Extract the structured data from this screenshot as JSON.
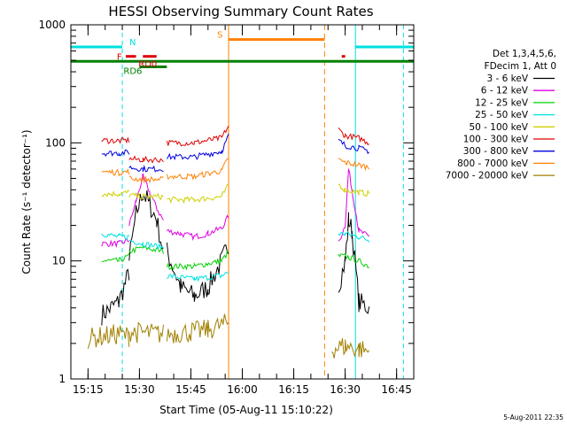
{
  "chart_data": {
    "type": "line",
    "title": "HESSI Observing Summary Count Rates",
    "xlabel": "Start Time (05-Aug-11 15:10:22)",
    "ylabel": "Count Rate (s⁻¹ detector⁻¹)",
    "y_scale": "log",
    "ylim": [
      1,
      1000
    ],
    "xlim_minutes_after_1510": [
      0,
      100
    ],
    "x_ticks": [
      "15:15",
      "15:30",
      "15:45",
      "16:00",
      "16:15",
      "16:30",
      "16:45"
    ],
    "y_ticks": [
      "1",
      "10",
      "100",
      "1000"
    ],
    "grid": false,
    "legend_placement": "right",
    "legend_header": [
      "Det 1,3,4,5,6,",
      "FDecim 1, Att 0"
    ],
    "timestamp": "5-Aug-2011 22:35",
    "series": [
      {
        "name": "3 - 6 keV",
        "color": "#000000",
        "segments": [
          [
            [
              "15:19",
              3.5
            ],
            [
              "15:24",
              4.5
            ],
            [
              "15:27",
              8
            ]
          ],
          [
            [
              "15:27",
              10
            ],
            [
              "15:29",
              25
            ],
            [
              "15:31",
              38
            ],
            [
              "15:33",
              30
            ],
            [
              "15:35",
              22
            ],
            [
              "15:37",
              12
            ]
          ],
          [
            [
              "15:38",
              12
            ],
            [
              "15:42",
              6
            ],
            [
              "15:46",
              5
            ],
            [
              "15:50",
              6
            ],
            [
              "15:54",
              10
            ],
            [
              "15:56",
              14
            ]
          ],
          [
            [
              "16:28",
              6
            ],
            [
              "16:30",
              10
            ],
            [
              "16:31",
              22
            ],
            [
              "16:32",
              18
            ],
            [
              "16:34",
              4.5
            ],
            [
              "16:37",
              4
            ]
          ]
        ]
      },
      {
        "name": "6 - 12 keV",
        "color": "#e000e0",
        "segments": [
          [
            [
              "15:19",
              14
            ],
            [
              "15:24",
              14
            ],
            [
              "15:27",
              15
            ]
          ],
          [
            [
              "15:27",
              20
            ],
            [
              "15:29",
              32
            ],
            [
              "15:31",
              52
            ],
            [
              "15:33",
              38
            ],
            [
              "15:35",
              28
            ],
            [
              "15:37",
              22
            ]
          ],
          [
            [
              "15:38",
              18
            ],
            [
              "15:42",
              17
            ],
            [
              "15:46",
              16
            ],
            [
              "15:50",
              17
            ],
            [
              "15:54",
              19
            ],
            [
              "15:56",
              24
            ]
          ],
          [
            [
              "16:28",
              14
            ],
            [
              "16:30",
              20
            ],
            [
              "16:31",
              60
            ],
            [
              "16:32",
              40
            ],
            [
              "16:34",
              18
            ],
            [
              "16:37",
              16
            ]
          ]
        ]
      },
      {
        "name": "12 - 25 keV",
        "color": "#00d000",
        "segments": [
          [
            [
              "15:19",
              10
            ],
            [
              "15:24",
              10
            ],
            [
              "15:27",
              11
            ]
          ],
          [
            [
              "15:27",
              12
            ],
            [
              "15:31",
              13
            ],
            [
              "15:37",
              12
            ]
          ],
          [
            [
              "15:38",
              9
            ],
            [
              "15:46",
              9
            ],
            [
              "15:54",
              10
            ],
            [
              "15:56",
              12
            ]
          ],
          [
            [
              "16:28",
              11
            ],
            [
              "16:30",
              11
            ],
            [
              "16:34",
              10
            ],
            [
              "16:37",
              9
            ]
          ]
        ]
      },
      {
        "name": "25 - 50 keV",
        "color": "#00e0e0",
        "segments": [
          [
            [
              "15:19",
              17
            ],
            [
              "15:24",
              16
            ],
            [
              "15:27",
              16
            ]
          ],
          [
            [
              "15:27",
              15
            ],
            [
              "15:31",
              14
            ],
            [
              "15:37",
              13
            ]
          ],
          [
            [
              "15:38",
              7.5
            ],
            [
              "15:46",
              7
            ],
            [
              "15:54",
              7.5
            ],
            [
              "15:56",
              8
            ]
          ],
          [
            [
              "16:28",
              17
            ],
            [
              "16:30",
              17
            ],
            [
              "16:34",
              16
            ],
            [
              "16:37",
              15
            ]
          ]
        ]
      },
      {
        "name": "50 - 100 keV",
        "color": "#d0d000",
        "segments": [
          [
            [
              "15:19",
              37
            ],
            [
              "15:24",
              37
            ],
            [
              "15:27",
              38
            ]
          ],
          [
            [
              "15:27",
              36
            ],
            [
              "15:31",
              35
            ],
            [
              "15:37",
              35
            ]
          ],
          [
            [
              "15:38",
              33
            ],
            [
              "15:46",
              33
            ],
            [
              "15:54",
              35
            ],
            [
              "15:56",
              44
            ]
          ],
          [
            [
              "16:28",
              45
            ],
            [
              "16:30",
              40
            ],
            [
              "16:34",
              38
            ],
            [
              "16:37",
              37
            ]
          ]
        ]
      },
      {
        "name": "100 - 300 keV",
        "color": "#e00000",
        "segments": [
          [
            [
              "15:19",
              105
            ],
            [
              "15:24",
              104
            ],
            [
              "15:27",
              105
            ]
          ],
          [
            [
              "15:27",
              73
            ],
            [
              "15:31",
              72
            ],
            [
              "15:37",
              72
            ]
          ],
          [
            [
              "15:38",
              100
            ],
            [
              "15:46",
              100
            ],
            [
              "15:54",
              110
            ],
            [
              "15:56",
              140
            ]
          ],
          [
            [
              "16:28",
              130
            ],
            [
              "16:30",
              115
            ],
            [
              "16:34",
              110
            ],
            [
              "16:37",
              100
            ]
          ]
        ]
      },
      {
        "name": "300 - 800 keV",
        "color": "#0000e0",
        "segments": [
          [
            [
              "15:19",
              82
            ],
            [
              "15:24",
              82
            ],
            [
              "15:27",
              83
            ]
          ],
          [
            [
              "15:27",
              62
            ],
            [
              "15:31",
              60
            ],
            [
              "15:37",
              60
            ]
          ],
          [
            [
              "15:38",
              76
            ],
            [
              "15:46",
              76
            ],
            [
              "15:54",
              85
            ],
            [
              "15:56",
              115
            ]
          ],
          [
            [
              "16:28",
              105
            ],
            [
              "16:30",
              95
            ],
            [
              "16:34",
              90
            ],
            [
              "16:37",
              85
            ]
          ]
        ]
      },
      {
        "name": "800 - 7000 keV",
        "color": "#ff8000",
        "segments": [
          [
            [
              "15:19",
              57
            ],
            [
              "15:24",
              56
            ],
            [
              "15:27",
              57
            ]
          ],
          [
            [
              "15:27",
              50
            ],
            [
              "15:31",
              49
            ],
            [
              "15:37",
              49
            ]
          ],
          [
            [
              "15:38",
              52
            ],
            [
              "15:46",
              52
            ],
            [
              "15:54",
              58
            ],
            [
              "15:56",
              75
            ]
          ],
          [
            [
              "16:28",
              72
            ],
            [
              "16:30",
              68
            ],
            [
              "16:34",
              65
            ],
            [
              "16:37",
              62
            ]
          ]
        ]
      },
      {
        "name": "7000 - 20000 keV",
        "color": "#a08000",
        "segments": [
          [
            [
              "15:15",
              2.2
            ],
            [
              "15:24",
              2.4
            ],
            [
              "15:27",
              2.3
            ]
          ],
          [
            [
              "15:27",
              2.5
            ],
            [
              "15:37",
              2.4
            ]
          ],
          [
            [
              "15:38",
              2.4
            ],
            [
              "15:50",
              2.6
            ],
            [
              "15:56",
              3
            ]
          ],
          [
            [
              "16:26",
              1.8
            ],
            [
              "16:30",
              1.9
            ],
            [
              "16:34",
              1.8
            ],
            [
              "16:37",
              1.7
            ]
          ]
        ]
      }
    ],
    "annotations": {
      "night": {
        "label": "N",
        "color": "#00e0e0",
        "level": 650,
        "intervals": [
          [
            "15:10",
            "15:25"
          ],
          [
            "16:33",
            "16:51"
          ]
        ],
        "boundaries": [
          "15:25",
          "16:33",
          "16:47"
        ]
      },
      "saa": {
        "label": "S",
        "color": "#ff8000",
        "level": 750,
        "interval": [
          "15:56",
          "16:24"
        ],
        "boundaries": [
          "15:56",
          "16:24"
        ]
      },
      "flare": {
        "label": "F",
        "color": "#e00000",
        "level": 540,
        "intervals": [
          [
            "15:26",
            "15:29"
          ],
          [
            "16:29",
            "16:30"
          ]
        ]
      },
      "rd0": {
        "label": "RD0",
        "color": "#e00000",
        "level": 540,
        "interval": [
          "15:31",
          "15:35"
        ]
      },
      "rd6": {
        "label": "RD6",
        "color": "#008000",
        "level": 440,
        "interval": [
          "15:30",
          "15:38"
        ]
      },
      "baseline": {
        "color": "#008000",
        "level": 490,
        "interval": [
          "15:10",
          "16:51"
        ]
      }
    }
  }
}
